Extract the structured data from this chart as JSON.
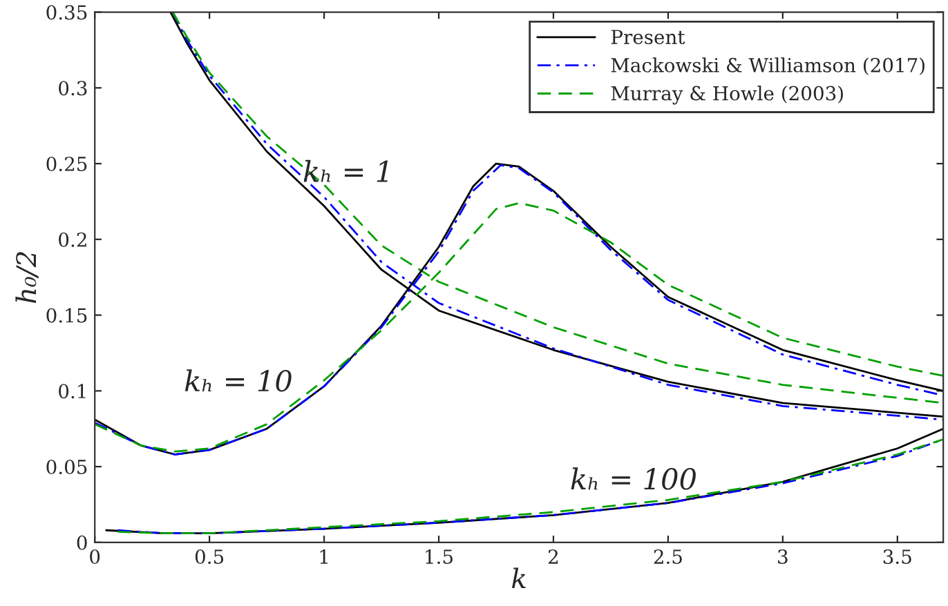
{
  "chart_data": {
    "type": "line",
    "xlabel": "k",
    "ylabel": "h₀/2",
    "xlim": [
      0,
      3.7
    ],
    "ylim": [
      0,
      0.35
    ],
    "xticks": [
      0,
      0.5,
      1,
      1.5,
      2,
      2.5,
      3,
      3.5
    ],
    "yticks": [
      0,
      0.05,
      0.1,
      0.15,
      0.2,
      0.25,
      0.3,
      0.35
    ],
    "grid": false,
    "legend": "top right",
    "marker": "none",
    "series": [
      {
        "name": "Present",
        "color": "#000000",
        "line_style": "solid",
        "x": [
          0.33,
          0.4,
          0.5,
          0.75,
          1,
          1.25,
          1.5,
          2,
          2.5,
          3,
          3.7
        ],
        "values": [
          0.35,
          0.33,
          0.305,
          0.258,
          0.222,
          0.18,
          0.153,
          0.127,
          0.106,
          0.092,
          0.083
        ]
      },
      {
        "name": "Mackowski & Williamson (2017)",
        "color": "#0000ff",
        "line_style": "dashdot",
        "x": [
          0.34,
          0.4,
          0.5,
          0.75,
          1,
          1.25,
          1.5,
          2,
          2.5,
          3,
          3.7
        ],
        "values": [
          0.35,
          0.332,
          0.308,
          0.263,
          0.228,
          0.185,
          0.158,
          0.128,
          0.104,
          0.09,
          0.081
        ]
      },
      {
        "name": "Murray & Howle (2003)",
        "color": "#00a000",
        "line_style": "dashed",
        "x": [
          0.34,
          0.4,
          0.5,
          0.75,
          1,
          1.25,
          1.5,
          2,
          2.5,
          3,
          3.7
        ],
        "values": [
          0.35,
          0.334,
          0.31,
          0.268,
          0.236,
          0.196,
          0.172,
          0.142,
          0.118,
          0.104,
          0.092
        ]
      },
      {
        "color": "#000000",
        "line_style": "solid",
        "x": [
          0,
          0.2,
          0.35,
          0.5,
          0.75,
          1,
          1.25,
          1.5,
          1.65,
          1.75,
          1.85,
          2,
          2.25,
          2.5,
          3,
          3.5,
          3.7
        ],
        "values": [
          0.081,
          0.064,
          0.058,
          0.061,
          0.075,
          0.103,
          0.143,
          0.195,
          0.235,
          0.25,
          0.248,
          0.232,
          0.195,
          0.162,
          0.127,
          0.107,
          0.1
        ]
      },
      {
        "color": "#0000ff",
        "line_style": "dashdot",
        "x": [
          0,
          0.2,
          0.35,
          0.5,
          0.75,
          1,
          1.25,
          1.5,
          1.65,
          1.77,
          1.85,
          2,
          2.25,
          2.5,
          3,
          3.5,
          3.7
        ],
        "values": [
          0.079,
          0.064,
          0.058,
          0.061,
          0.075,
          0.103,
          0.142,
          0.192,
          0.232,
          0.249,
          0.247,
          0.231,
          0.193,
          0.16,
          0.124,
          0.104,
          0.097
        ]
      },
      {
        "color": "#00a000",
        "line_style": "dashed",
        "x": [
          0,
          0.2,
          0.35,
          0.5,
          0.75,
          1,
          1.25,
          1.5,
          1.75,
          1.85,
          2,
          2.25,
          2.5,
          3,
          3.5,
          3.7
        ],
        "values": [
          0.078,
          0.064,
          0.06,
          0.062,
          0.078,
          0.107,
          0.14,
          0.178,
          0.22,
          0.224,
          0.219,
          0.198,
          0.17,
          0.135,
          0.116,
          0.11
        ]
      },
      {
        "color": "#000000",
        "line_style": "solid",
        "x": [
          0.05,
          0.3,
          0.5,
          1,
          1.5,
          2,
          2.5,
          3,
          3.5,
          3.7
        ],
        "values": [
          0.008,
          0.006,
          0.006,
          0.009,
          0.013,
          0.018,
          0.026,
          0.04,
          0.062,
          0.075
        ]
      },
      {
        "color": "#0000ff",
        "line_style": "dashdot",
        "x": [
          0.1,
          0.3,
          0.5,
          1,
          1.5,
          2,
          2.5,
          3,
          3.5,
          3.7
        ],
        "values": [
          0.008,
          0.006,
          0.006,
          0.009,
          0.013,
          0.018,
          0.026,
          0.039,
          0.057,
          0.068
        ]
      },
      {
        "color": "#00a000",
        "line_style": "dashed",
        "x": [
          0.1,
          0.3,
          0.5,
          1,
          1.5,
          2,
          2.5,
          3,
          3.5,
          3.7
        ],
        "values": [
          0.007,
          0.006,
          0.006,
          0.01,
          0.014,
          0.02,
          0.028,
          0.04,
          0.058,
          0.068
        ]
      }
    ],
    "annotations": [
      "kₕ = 1",
      "kₕ = 10",
      "kₕ = 100"
    ]
  }
}
